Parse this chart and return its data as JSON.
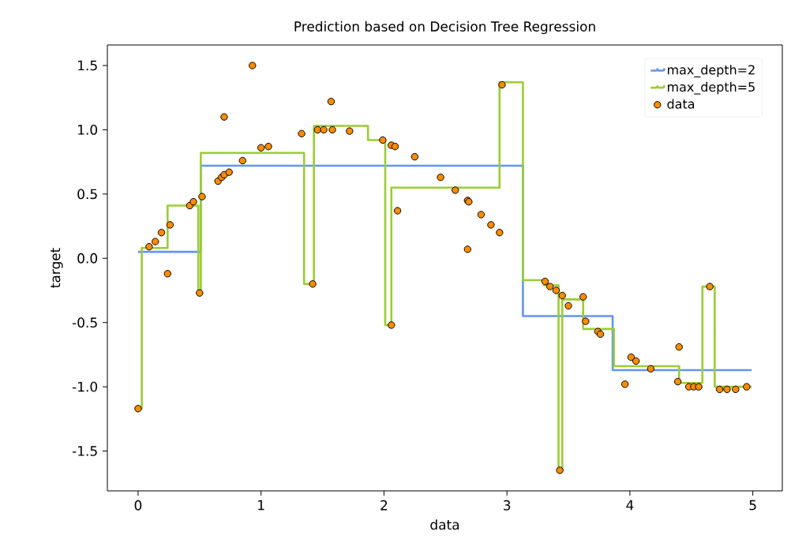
{
  "chart_data": {
    "type": "scatter",
    "title": "Prediction based on Decision Tree Regression",
    "xlabel": "data",
    "ylabel": "target",
    "xlim": [
      -0.25,
      5.24
    ],
    "ylim": [
      -1.81,
      1.66
    ],
    "xticks": [
      0,
      1,
      2,
      3,
      4,
      5
    ],
    "yticks": [
      -1.5,
      {
        "value": -1,
        "label": "-1.0"
      },
      -0.5,
      {
        "value": 0,
        "label": "0.0"
      },
      0.5,
      {
        "value": 1,
        "label": "1.0"
      },
      1.5
    ],
    "grid": false,
    "legend": "top right",
    "series": [
      {
        "name": "max_depth=2",
        "type": "step",
        "color": "#6495ed",
        "marker": "none",
        "x": [
          0.0,
          0.51,
          3.13,
          3.86,
          4.99
        ],
        "values": [
          0.05,
          0.72,
          -0.45,
          -0.87,
          -0.87
        ]
      },
      {
        "name": "max_depth=5",
        "type": "step",
        "color": "#9acd32",
        "marker": "none",
        "x": [
          0.0,
          0.03,
          0.24,
          0.49,
          0.51,
          1.35,
          1.43,
          1.87,
          2.01,
          2.06,
          2.94,
          3.13,
          3.3,
          3.42,
          3.45,
          3.62,
          3.87,
          4.4,
          4.59,
          4.69,
          4.99
        ],
        "values": [
          -1.17,
          0.08,
          0.41,
          -0.27,
          0.82,
          -0.2,
          1.03,
          0.92,
          -0.52,
          0.55,
          1.37,
          -0.17,
          -0.21,
          -1.65,
          -0.32,
          -0.55,
          -0.84,
          -0.97,
          -0.22,
          -1.0,
          -1.0
        ]
      },
      {
        "name": "data",
        "color": "#ff8c00",
        "marker": "circle",
        "x": [
          0.0,
          0.09,
          0.14,
          0.19,
          0.26,
          0.24,
          0.42,
          0.45,
          0.52,
          0.5,
          0.65,
          0.68,
          0.7,
          0.74,
          0.85,
          1.0,
          1.06,
          0.7,
          0.93,
          1.33,
          1.57,
          1.46,
          1.51,
          1.58,
          1.72,
          1.99,
          2.06,
          2.09,
          2.25,
          2.46,
          2.58,
          2.68,
          2.69,
          2.79,
          2.87,
          2.94,
          2.68,
          2.11,
          2.96,
          1.42,
          2.06,
          3.31,
          3.35,
          3.4,
          3.45,
          3.5,
          3.62,
          3.64,
          3.74,
          3.76,
          3.43,
          4.01,
          4.05,
          3.96,
          4.17,
          4.4,
          4.39,
          4.48,
          4.52,
          4.56,
          4.65,
          4.73,
          4.79,
          4.86,
          4.95
        ],
        "values": [
          -1.17,
          0.09,
          0.13,
          0.2,
          0.26,
          -0.12,
          0.41,
          0.44,
          0.48,
          -0.27,
          0.6,
          0.63,
          0.65,
          0.67,
          0.76,
          0.86,
          0.87,
          1.1,
          1.5,
          0.97,
          1.22,
          1.0,
          1.0,
          1.0,
          0.99,
          0.92,
          0.88,
          0.87,
          0.79,
          0.63,
          0.53,
          0.45,
          0.44,
          0.34,
          0.26,
          0.2,
          0.07,
          0.37,
          1.35,
          -0.2,
          -0.52,
          -0.18,
          -0.22,
          -0.25,
          -0.29,
          -0.37,
          -0.3,
          -0.49,
          -0.57,
          -0.59,
          -1.65,
          -0.77,
          -0.8,
          -0.98,
          -0.86,
          -0.69,
          -0.96,
          -1.0,
          -1.0,
          -1.0,
          -0.22,
          -1.02,
          -1.02,
          -1.02,
          -1.0
        ]
      }
    ]
  }
}
